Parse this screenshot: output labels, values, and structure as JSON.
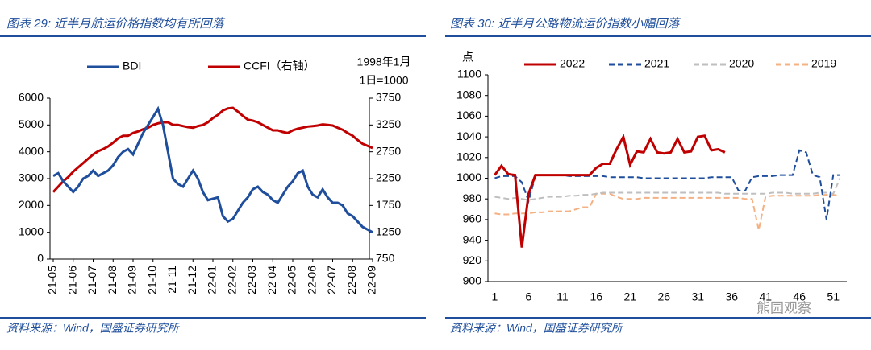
{
  "chart_data": [
    {
      "type": "line",
      "title": "图表 29:  近半月航运价格指数均有所回落",
      "source": "资料来源：Wind，国盛证券研究所",
      "annotation": [
        "1998年1月",
        "1日=1000"
      ],
      "categories": [
        "21-05",
        null,
        null,
        null,
        "21-06",
        null,
        null,
        null,
        "21-07",
        null,
        null,
        null,
        "21-08",
        null,
        null,
        null,
        "21-09",
        null,
        null,
        null,
        "21-10",
        null,
        null,
        null,
        "21-11",
        null,
        null,
        null,
        "21-12",
        null,
        null,
        null,
        "22-01",
        null,
        null,
        null,
        "22-02",
        null,
        null,
        null,
        "22-03",
        null,
        null,
        null,
        "22-04",
        null,
        null,
        null,
        "22-05",
        null,
        null,
        null,
        "22-06",
        null,
        null,
        null,
        "22-07",
        null,
        null,
        null,
        "22-08",
        null,
        null,
        null,
        "22-09"
      ],
      "ylim": [
        0,
        6000
      ],
      "yticks": [
        0,
        1000,
        2000,
        3000,
        4000,
        5000,
        6000
      ],
      "y2lim": [
        750,
        3750
      ],
      "y2ticks": [
        750,
        1250,
        1750,
        2250,
        2750,
        3250,
        3750
      ],
      "series": [
        {
          "name": "BDI",
          "color": "#1f4e9c",
          "line_style": "solid",
          "values": [
            3100,
            3200,
            2900,
            2700,
            2500,
            2700,
            3000,
            3100,
            3300,
            3100,
            3200,
            3300,
            3500,
            3800,
            4000,
            4100,
            3900,
            4300,
            4700,
            5000,
            5300,
            5600,
            5000,
            4000,
            3000,
            2800,
            2700,
            3000,
            3300,
            3000,
            2500,
            2200,
            2250,
            2300,
            1600,
            1400,
            1500,
            1800,
            2100,
            2300,
            2600,
            2700,
            2500,
            2400,
            2200,
            2100,
            2400,
            2700,
            2900,
            3200,
            3300,
            2700,
            2400,
            2300,
            2600,
            2300,
            2100,
            2100,
            2000,
            1700,
            1600,
            1400,
            1200,
            1100,
            1000
          ]
        },
        {
          "name": "CCFI（右轴）",
          "color": "#c00000",
          "line_style": "solid",
          "axis": "y2",
          "values": [
            2000,
            2100,
            2200,
            2280,
            2380,
            2460,
            2540,
            2620,
            2700,
            2760,
            2800,
            2850,
            2920,
            3000,
            3050,
            3050,
            3100,
            3130,
            3170,
            3200,
            3250,
            3280,
            3300,
            3300,
            3250,
            3250,
            3230,
            3210,
            3200,
            3230,
            3250,
            3300,
            3380,
            3440,
            3520,
            3560,
            3570,
            3500,
            3420,
            3350,
            3330,
            3300,
            3250,
            3200,
            3150,
            3150,
            3120,
            3100,
            3150,
            3180,
            3200,
            3220,
            3230,
            3240,
            3260,
            3250,
            3240,
            3200,
            3160,
            3100,
            3050,
            2970,
            2900,
            2860,
            2820
          ]
        }
      ]
    },
    {
      "type": "line",
      "title": "图表 30:  近半月公路物流运价指数小幅回落",
      "source": "资料来源：Wind，国盛证券研究所",
      "ylabel": "点",
      "watermark": "熊园观察",
      "x": [
        1,
        2,
        3,
        4,
        5,
        6,
        7,
        8,
        9,
        10,
        11,
        12,
        13,
        14,
        15,
        16,
        17,
        18,
        19,
        20,
        21,
        22,
        23,
        24,
        25,
        26,
        27,
        28,
        29,
        30,
        31,
        32,
        33,
        34,
        35,
        36,
        37,
        38,
        39,
        40,
        41,
        42,
        43,
        44,
        45,
        46,
        47,
        48,
        49,
        50,
        51,
        52
      ],
      "xlim": [
        0,
        53
      ],
      "xticks": [
        1,
        6,
        11,
        16,
        21,
        26,
        31,
        36,
        41,
        46,
        51
      ],
      "ylim": [
        900,
        1100
      ],
      "yticks": [
        900,
        920,
        940,
        960,
        980,
        1000,
        1020,
        1040,
        1060,
        1080,
        1100
      ],
      "series": [
        {
          "name": "2022",
          "color": "#c00000",
          "line_style": "solid",
          "values": [
            1003,
            1012,
            1004,
            1003,
            933,
            985,
            1003,
            1003,
            1003,
            1003,
            1003,
            1003,
            1003,
            1003,
            1003,
            1010,
            1014,
            1014,
            1028,
            1040,
            1013,
            1026,
            1025,
            1038,
            1025,
            1024,
            1025,
            1038,
            1025,
            1026,
            1040,
            1041,
            1027,
            1028,
            1025,
            null,
            null,
            null,
            null,
            null,
            null,
            null,
            null,
            null,
            null,
            null,
            null,
            null,
            null,
            null,
            null,
            null
          ]
        },
        {
          "name": "2021",
          "color": "#1f4e9c",
          "line_style": "dashed",
          "values": [
            1000,
            1002,
            1002,
            1002,
            996,
            978,
            1002,
            1003,
            1003,
            1003,
            1003,
            1002,
            1002,
            1002,
            1002,
            1002,
            1002,
            1001,
            1001,
            1001,
            1001,
            1001,
            1000,
            1000,
            1000,
            1000,
            1000,
            1000,
            1000,
            1000,
            1000,
            1000,
            1001,
            1001,
            1001,
            1001,
            988,
            988,
            1001,
            1002,
            1002,
            1002,
            1003,
            1003,
            1003,
            1027,
            1025,
            1003,
            1001,
            960,
            1003,
            1003
          ]
        },
        {
          "name": "2020",
          "color": "#bfbfbf",
          "line_style": "dashed",
          "values": [
            982,
            981,
            980,
            981,
            980,
            979,
            980,
            981,
            982,
            982,
            982,
            983,
            983,
            984,
            984,
            985,
            986,
            986,
            986,
            986,
            986,
            986,
            986,
            986,
            986,
            986,
            986,
            986,
            986,
            986,
            986,
            986,
            986,
            986,
            985,
            985,
            985,
            985,
            985,
            985,
            985,
            986,
            986,
            986,
            985,
            985,
            985,
            985,
            986,
            986,
            985,
            1000
          ]
        },
        {
          "name": "2019",
          "color": "#f4b183",
          "line_style": "dashed",
          "values": [
            966,
            965,
            965,
            966,
            966,
            966,
            967,
            967,
            968,
            968,
            968,
            968,
            970,
            972,
            972,
            985,
            985,
            985,
            982,
            980,
            980,
            980,
            981,
            981,
            981,
            981,
            981,
            981,
            981,
            981,
            981,
            981,
            981,
            981,
            981,
            981,
            981,
            980,
            980,
            950,
            982,
            983,
            983,
            983,
            983,
            983,
            983,
            983,
            984,
            984,
            984,
            983
          ]
        }
      ]
    }
  ]
}
